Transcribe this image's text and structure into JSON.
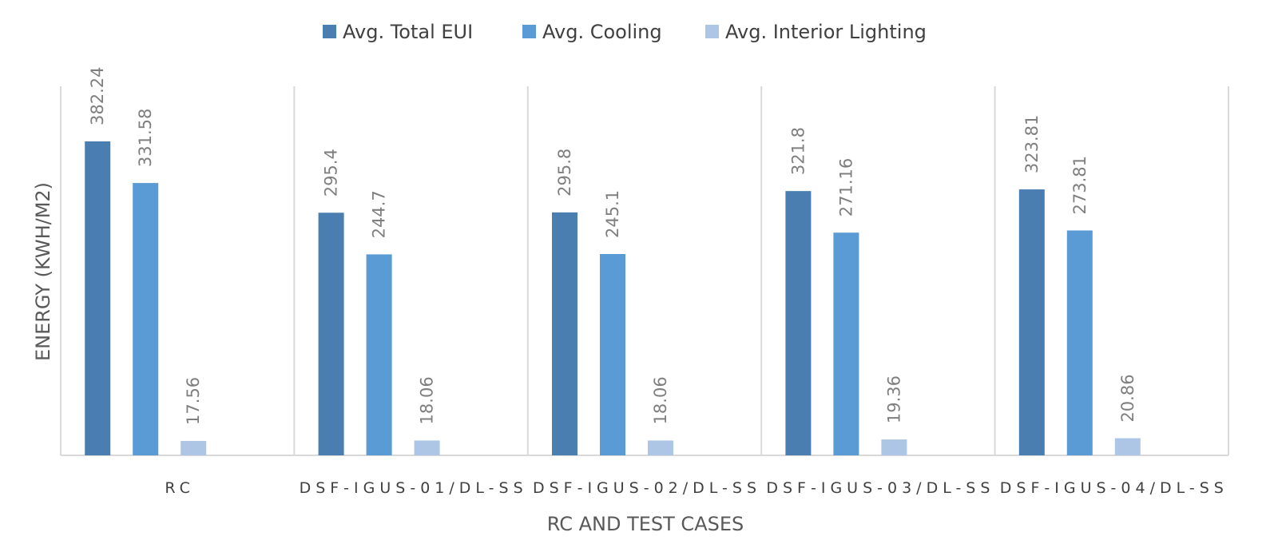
{
  "chart_data": {
    "type": "bar",
    "title": "",
    "xlabel": "RC AND TEST CASES",
    "ylabel": "ENERGY (KWH/M2)",
    "ylim": [
      0,
      450
    ],
    "grid": false,
    "legend": "top",
    "categories": [
      "RC",
      "DSF-IGUS-01/DL-SS",
      "DSF-IGUS-02/DL-SS",
      "DSF-IGUS-03/DL-SS",
      "DSF-IGUS-04/DL-SS"
    ],
    "series": [
      {
        "name": "Avg. Total EUI",
        "color": "#4a7eb1",
        "values": [
          382.24,
          295.4,
          295.8,
          321.8,
          323.81
        ],
        "labels": [
          "382.24",
          "295.4",
          "295.8",
          "321.8",
          "323.81"
        ]
      },
      {
        "name": "Avg. Cooling",
        "color": "#5b9bd5",
        "values": [
          331.58,
          244.7,
          245.1,
          271.16,
          273.81
        ],
        "labels": [
          "331.58",
          "244.7",
          "245.1",
          "271.16",
          "273.81"
        ]
      },
      {
        "name": "Avg. Interior Lighting",
        "color": "#adc6e6",
        "values": [
          17.56,
          18.06,
          18.06,
          19.36,
          20.86
        ],
        "labels": [
          "17.56",
          "18.06",
          "18.06",
          "19.36",
          "20.86"
        ]
      }
    ]
  }
}
